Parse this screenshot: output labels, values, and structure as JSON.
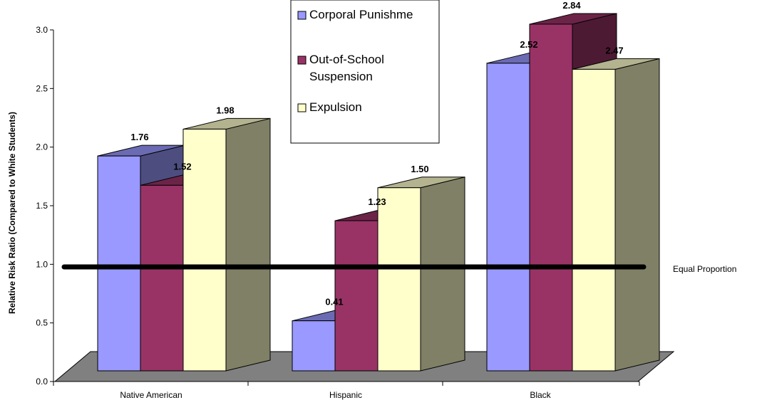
{
  "chart_data": {
    "type": "bar",
    "categories": [
      "Native American",
      "Hispanic",
      "Black"
    ],
    "series": [
      {
        "name": "Corporal Punishme",
        "values": [
          1.76,
          0.41,
          2.52
        ]
      },
      {
        "name": "Out-of-School Suspension",
        "values": [
          1.52,
          1.23,
          2.84
        ]
      },
      {
        "name": "Expulsion",
        "values": [
          1.98,
          1.5,
          2.47
        ]
      }
    ],
    "value_labels": [
      [
        "1.76",
        "0.41",
        "2.52"
      ],
      [
        "1.52",
        "1.23",
        "2.84"
      ],
      [
        "1.98",
        "1.50",
        "2.47"
      ]
    ],
    "ylabel": "Relative Risk Ratio (Compared to White Students)",
    "ylim": [
      0,
      3
    ],
    "yticks": [
      "0.0",
      "0.5",
      "1.0",
      "1.5",
      "2.0",
      "2.5",
      "3.0"
    ],
    "reference_line": {
      "value": 1.0,
      "label": "Equal Proportion"
    },
    "legend": {
      "placement": "top-center",
      "entries": [
        {
          "lines": [
            "Corporal Punishme"
          ]
        },
        {
          "lines": [
            "Out-of-School",
            "Suspension"
          ]
        },
        {
          "lines": [
            "Expulsion"
          ]
        }
      ]
    },
    "colors": {
      "front": [
        "#9999ff",
        "#993366",
        "#ffffcc"
      ],
      "top": [
        "#6b6bb3",
        "#6b2447",
        "#b3b38f"
      ],
      "side": [
        "#4d4d80",
        "#4d1a33",
        "#808066"
      ],
      "floor": "#808080",
      "ref_line": "#000000"
    },
    "grid": false,
    "style": "3d"
  }
}
